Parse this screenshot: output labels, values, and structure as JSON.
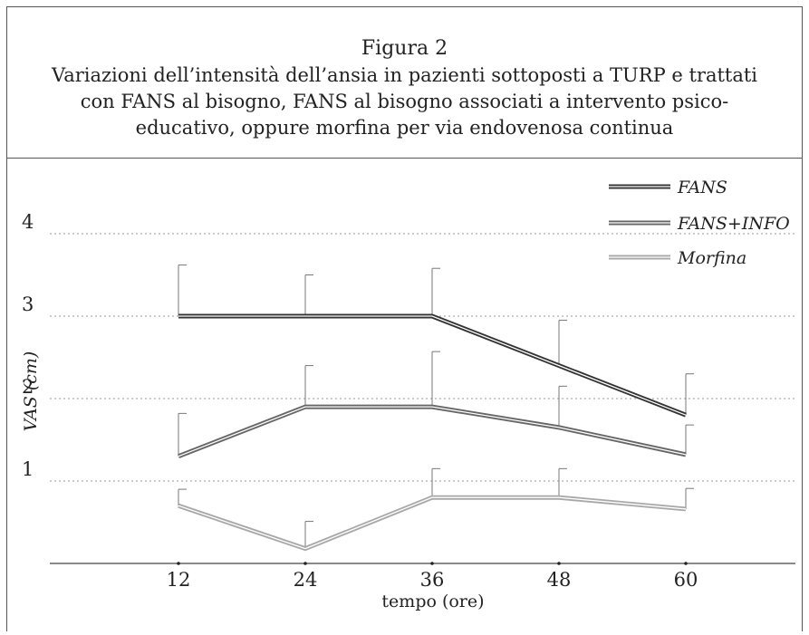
{
  "header": {
    "figure_label": "Figura 2",
    "caption": "Variazioni dell’intensità dell’ansia in pazienti sottoposti a TURP e trattati con FANS al bisogno, FANS al bisogno associati a intervento psico-educativo, oppure morfina per via endovenosa continua"
  },
  "chart_data": {
    "type": "line",
    "title": "Figura 2",
    "xlabel": "tempo (ore)",
    "ylabel": "VAS (cm)",
    "x": [
      12,
      24,
      36,
      48,
      60
    ],
    "x_tick_labels": [
      "12",
      "24",
      "36",
      "48",
      "60"
    ],
    "y_tick_labels": [
      "1",
      "2",
      "3",
      "4"
    ],
    "y_ticks": [
      1,
      2,
      3,
      4
    ],
    "ylim": [
      0,
      4.4
    ],
    "xlim": [
      6,
      66
    ],
    "grid": "horizontal dotted at y ticks",
    "legend_position": "top-right",
    "error_bars": "upper only",
    "series": [
      {
        "name": "FANS",
        "color": "#333333",
        "values": [
          3.0,
          3.0,
          3.0,
          2.4,
          1.8
        ],
        "error_upper": [
          0.62,
          0.5,
          0.58,
          0.55,
          0.5
        ]
      },
      {
        "name": "FANS+INFO",
        "color": "#666666",
        "values": [
          1.3,
          1.9,
          1.9,
          1.65,
          1.32
        ],
        "error_upper": [
          0.52,
          0.5,
          0.67,
          0.5,
          0.36
        ]
      },
      {
        "name": "Morfina",
        "color": "#a8a8a8",
        "values": [
          0.7,
          0.18,
          0.8,
          0.8,
          0.66
        ],
        "error_upper": [
          0.2,
          0.33,
          0.35,
          0.35,
          0.25
        ]
      }
    ]
  }
}
